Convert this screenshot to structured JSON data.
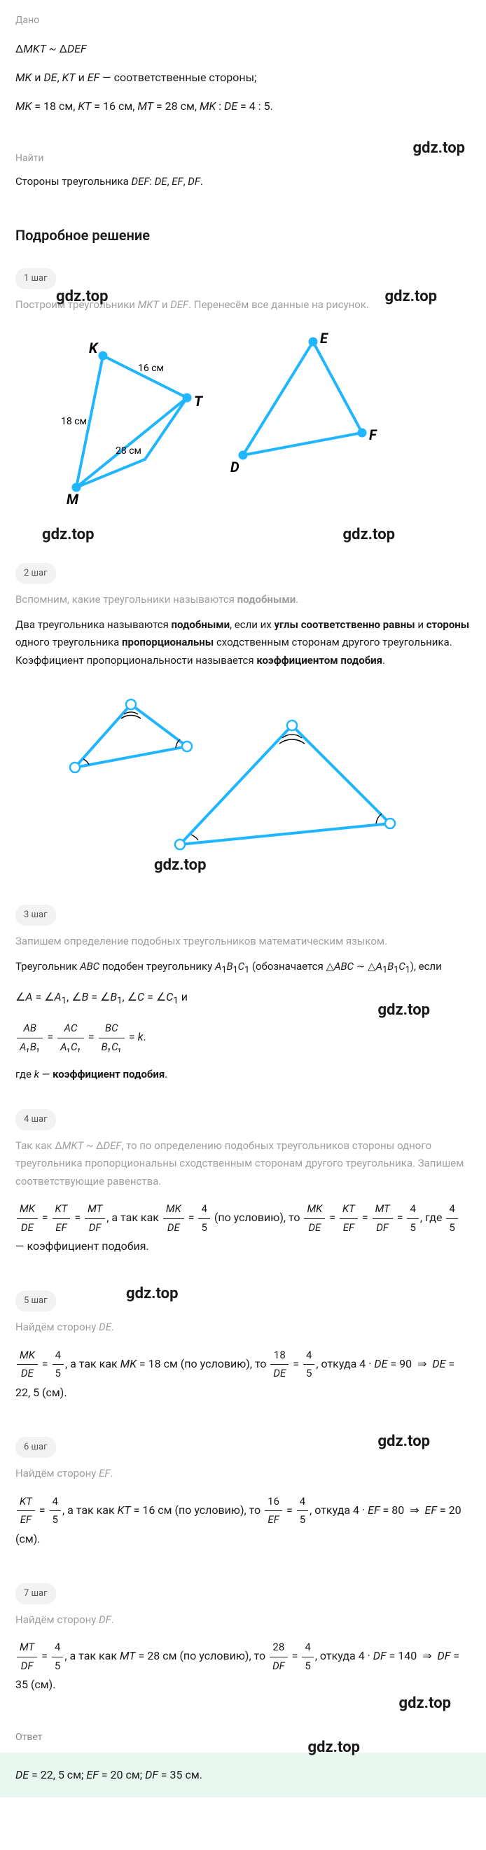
{
  "given": {
    "label": "Дано",
    "line1": "Δ<i>MKT</i> ~ Δ<i>DEF</i>",
    "line2": "<i>MK</i> и <i>DE</i>, <i>KT</i> и <i>EF</i> — соответственные стороны;",
    "line3": "<i>MK</i> = 18 см, <i>KT</i> = 16 см, <i>MT</i> = 28 см, <i>MK</i> : <i>DE</i> = 4 : 5."
  },
  "find": {
    "label": "Найти",
    "text": "Стороны треугольника <i>DEF</i>: <i>DE</i>, <i>EF</i>, <i>DF</i>."
  },
  "solution_heading": "Подробное решение",
  "step1": {
    "badge": "1 шаг",
    "text": "Построим треугольники <i>MKT</i> и <i>DEF</i>. Перенесём все данные на рисунок.",
    "diagram": {
      "KT": "16 см",
      "MK": "18 см",
      "MT": "28 см",
      "color": "#1fb6ff"
    }
  },
  "step2": {
    "badge": "2 шаг",
    "intro": "Вспомним, какие треугольники называются <b>подобными</b>.",
    "rule": "Два треугольника называются <b>подобными</b>, если их <b>углы соответственно равны</b> и <b>стороны</b> одного треугольника <b>пропорциональны</b> сходственным сторонам другого треугольника. Коэффициент пропорциональности называется <b>коэффициентом подобия</b>."
  },
  "step3": {
    "badge": "3 шаг",
    "intro": "Запишем определение подобных треугольников математическим языком.",
    "l1": "Треугольник <i>ABC</i> подобен треугольнику <i>A</i><sub>1</sub><i>B</i><sub>1</sub><i>C</i><sub>1</sub> (обозначается △<i>ABC</i> ∼ △<i>A</i><sub>1</sub><i>B</i><sub>1</sub><i>C</i><sub>1</sub>), если",
    "l2": "∠<i>A</i> = ∠<i>A</i><sub>1</sub>, ∠<i>B</i> = ∠<i>B</i><sub>1</sub>, ∠<i>C</i> = ∠<i>C</i><sub>1</sub> и",
    "l3a_num": "AB",
    "l3a_den": "A₁B₁",
    "l3b_num": "AC",
    "l3b_den": "A₁C₁",
    "l3c_num": "BC",
    "l3c_den": "B₁C₁",
    "l3_tail": " = <i>k</i>.",
    "l4": "где <i>k</i> — <b>коэффициент подобия</b>."
  },
  "step4": {
    "badge": "4 шаг",
    "intro": "Так как Δ<i>MKT</i> ~ Δ<i>DEF</i>, то по определению подобных треугольников стороны одного треугольника пропорциональны сходственным сторонам другого треугольника. Запишем соответствующие равенства."
  },
  "step5": {
    "badge": "5 шаг",
    "intro": "Найдём сторону <i>DE</i>."
  },
  "step6": {
    "badge": "6 шаг",
    "intro": "Найдём сторону <i>EF</i>."
  },
  "step7": {
    "badge": "7 шаг",
    "intro": "Найдём сторону <i>DF</i>."
  },
  "answer": {
    "label": "Ответ",
    "text": "<i>DE</i> = 22, 5 см; <i>EF</i> = 20 см; <i>DF</i> = 35 см."
  },
  "watermark": "gdz.top",
  "colors": {
    "accent": "#1fb6ff",
    "answer_bg": "#e8f7ef",
    "badge_bg": "#f2f2f2",
    "faded": "#a0a0a0"
  }
}
